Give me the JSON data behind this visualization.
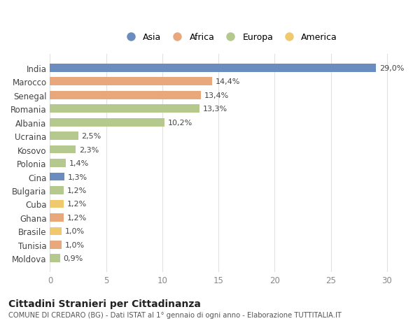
{
  "countries": [
    "India",
    "Marocco",
    "Senegal",
    "Romania",
    "Albania",
    "Ucraina",
    "Kosovo",
    "Polonia",
    "Cina",
    "Bulgaria",
    "Cuba",
    "Ghana",
    "Brasile",
    "Tunisia",
    "Moldova"
  ],
  "values": [
    29.0,
    14.4,
    13.4,
    13.3,
    10.2,
    2.5,
    2.3,
    1.4,
    1.3,
    1.2,
    1.2,
    1.2,
    1.0,
    1.0,
    0.9
  ],
  "labels": [
    "29,0%",
    "14,4%",
    "13,4%",
    "13,3%",
    "10,2%",
    "2,5%",
    "2,3%",
    "1,4%",
    "1,3%",
    "1,2%",
    "1,2%",
    "1,2%",
    "1,0%",
    "1,0%",
    "0,9%"
  ],
  "continents": [
    "Asia",
    "Africa",
    "Africa",
    "Europa",
    "Europa",
    "Europa",
    "Europa",
    "Europa",
    "Asia",
    "Europa",
    "America",
    "Africa",
    "America",
    "Africa",
    "Europa"
  ],
  "continent_colors": {
    "Asia": "#6b8cbf",
    "Africa": "#e8a87c",
    "Europa": "#b5c98e",
    "America": "#f0c96e"
  },
  "legend_order": [
    "Asia",
    "Africa",
    "Europa",
    "America"
  ],
  "title": "Cittadini Stranieri per Cittadinanza",
  "subtitle": "COMUNE DI CREDARO (BG) - Dati ISTAT al 1° gennaio di ogni anno - Elaborazione TUTTITALIA.IT",
  "xlim": [
    0,
    32
  ],
  "xticks": [
    0,
    5,
    10,
    15,
    20,
    25,
    30
  ],
  "background_color": "#ffffff",
  "grid_color": "#e0e0e0"
}
